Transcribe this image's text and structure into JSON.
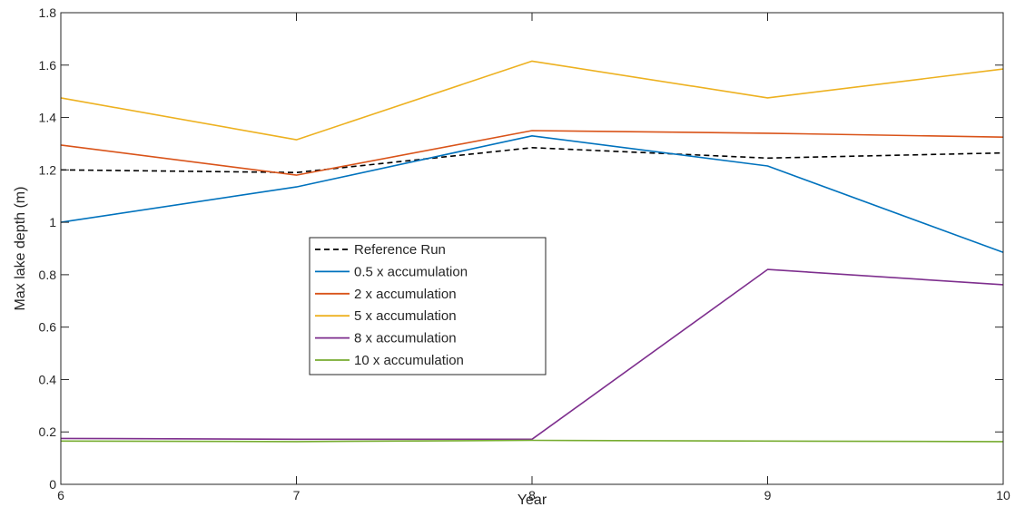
{
  "chart_data": {
    "type": "line",
    "title": "",
    "xlabel": "Year",
    "ylabel": "Max lake depth (m)",
    "x": [
      6,
      7,
      8,
      9,
      10
    ],
    "xlim": [
      6,
      10
    ],
    "ylim": [
      0,
      1.8
    ],
    "xticks": [
      "6",
      "7",
      "8",
      "9",
      "10"
    ],
    "yticks": [
      "0",
      "0.2",
      "0.4",
      "0.6",
      "0.8",
      "1",
      "1.2",
      "1.4",
      "1.6",
      "1.8"
    ],
    "grid": false,
    "legend_position": "center-left",
    "series": [
      {
        "name": "Reference Run",
        "color": "#000000",
        "dash": true,
        "values": [
          1.2,
          1.19,
          1.285,
          1.245,
          1.265
        ]
      },
      {
        "name": "0.5 x accumulation",
        "color": "#0072BD",
        "dash": false,
        "values": [
          1.0,
          1.135,
          1.33,
          1.215,
          0.885
        ]
      },
      {
        "name": "2 x accumulation",
        "color": "#D95319",
        "dash": false,
        "values": [
          1.295,
          1.18,
          1.35,
          1.34,
          1.325
        ]
      },
      {
        "name": "5 x accumulation",
        "color": "#EDB120",
        "dash": false,
        "values": [
          1.475,
          1.315,
          1.615,
          1.475,
          1.585
        ]
      },
      {
        "name": "8 x accumulation",
        "color": "#7E2F8E",
        "dash": false,
        "values": [
          0.175,
          0.172,
          0.172,
          0.82,
          0.762
        ]
      },
      {
        "name": "10 x accumulation",
        "color": "#77AC30",
        "dash": false,
        "values": [
          0.165,
          0.163,
          0.168,
          0.165,
          0.163
        ]
      }
    ]
  }
}
